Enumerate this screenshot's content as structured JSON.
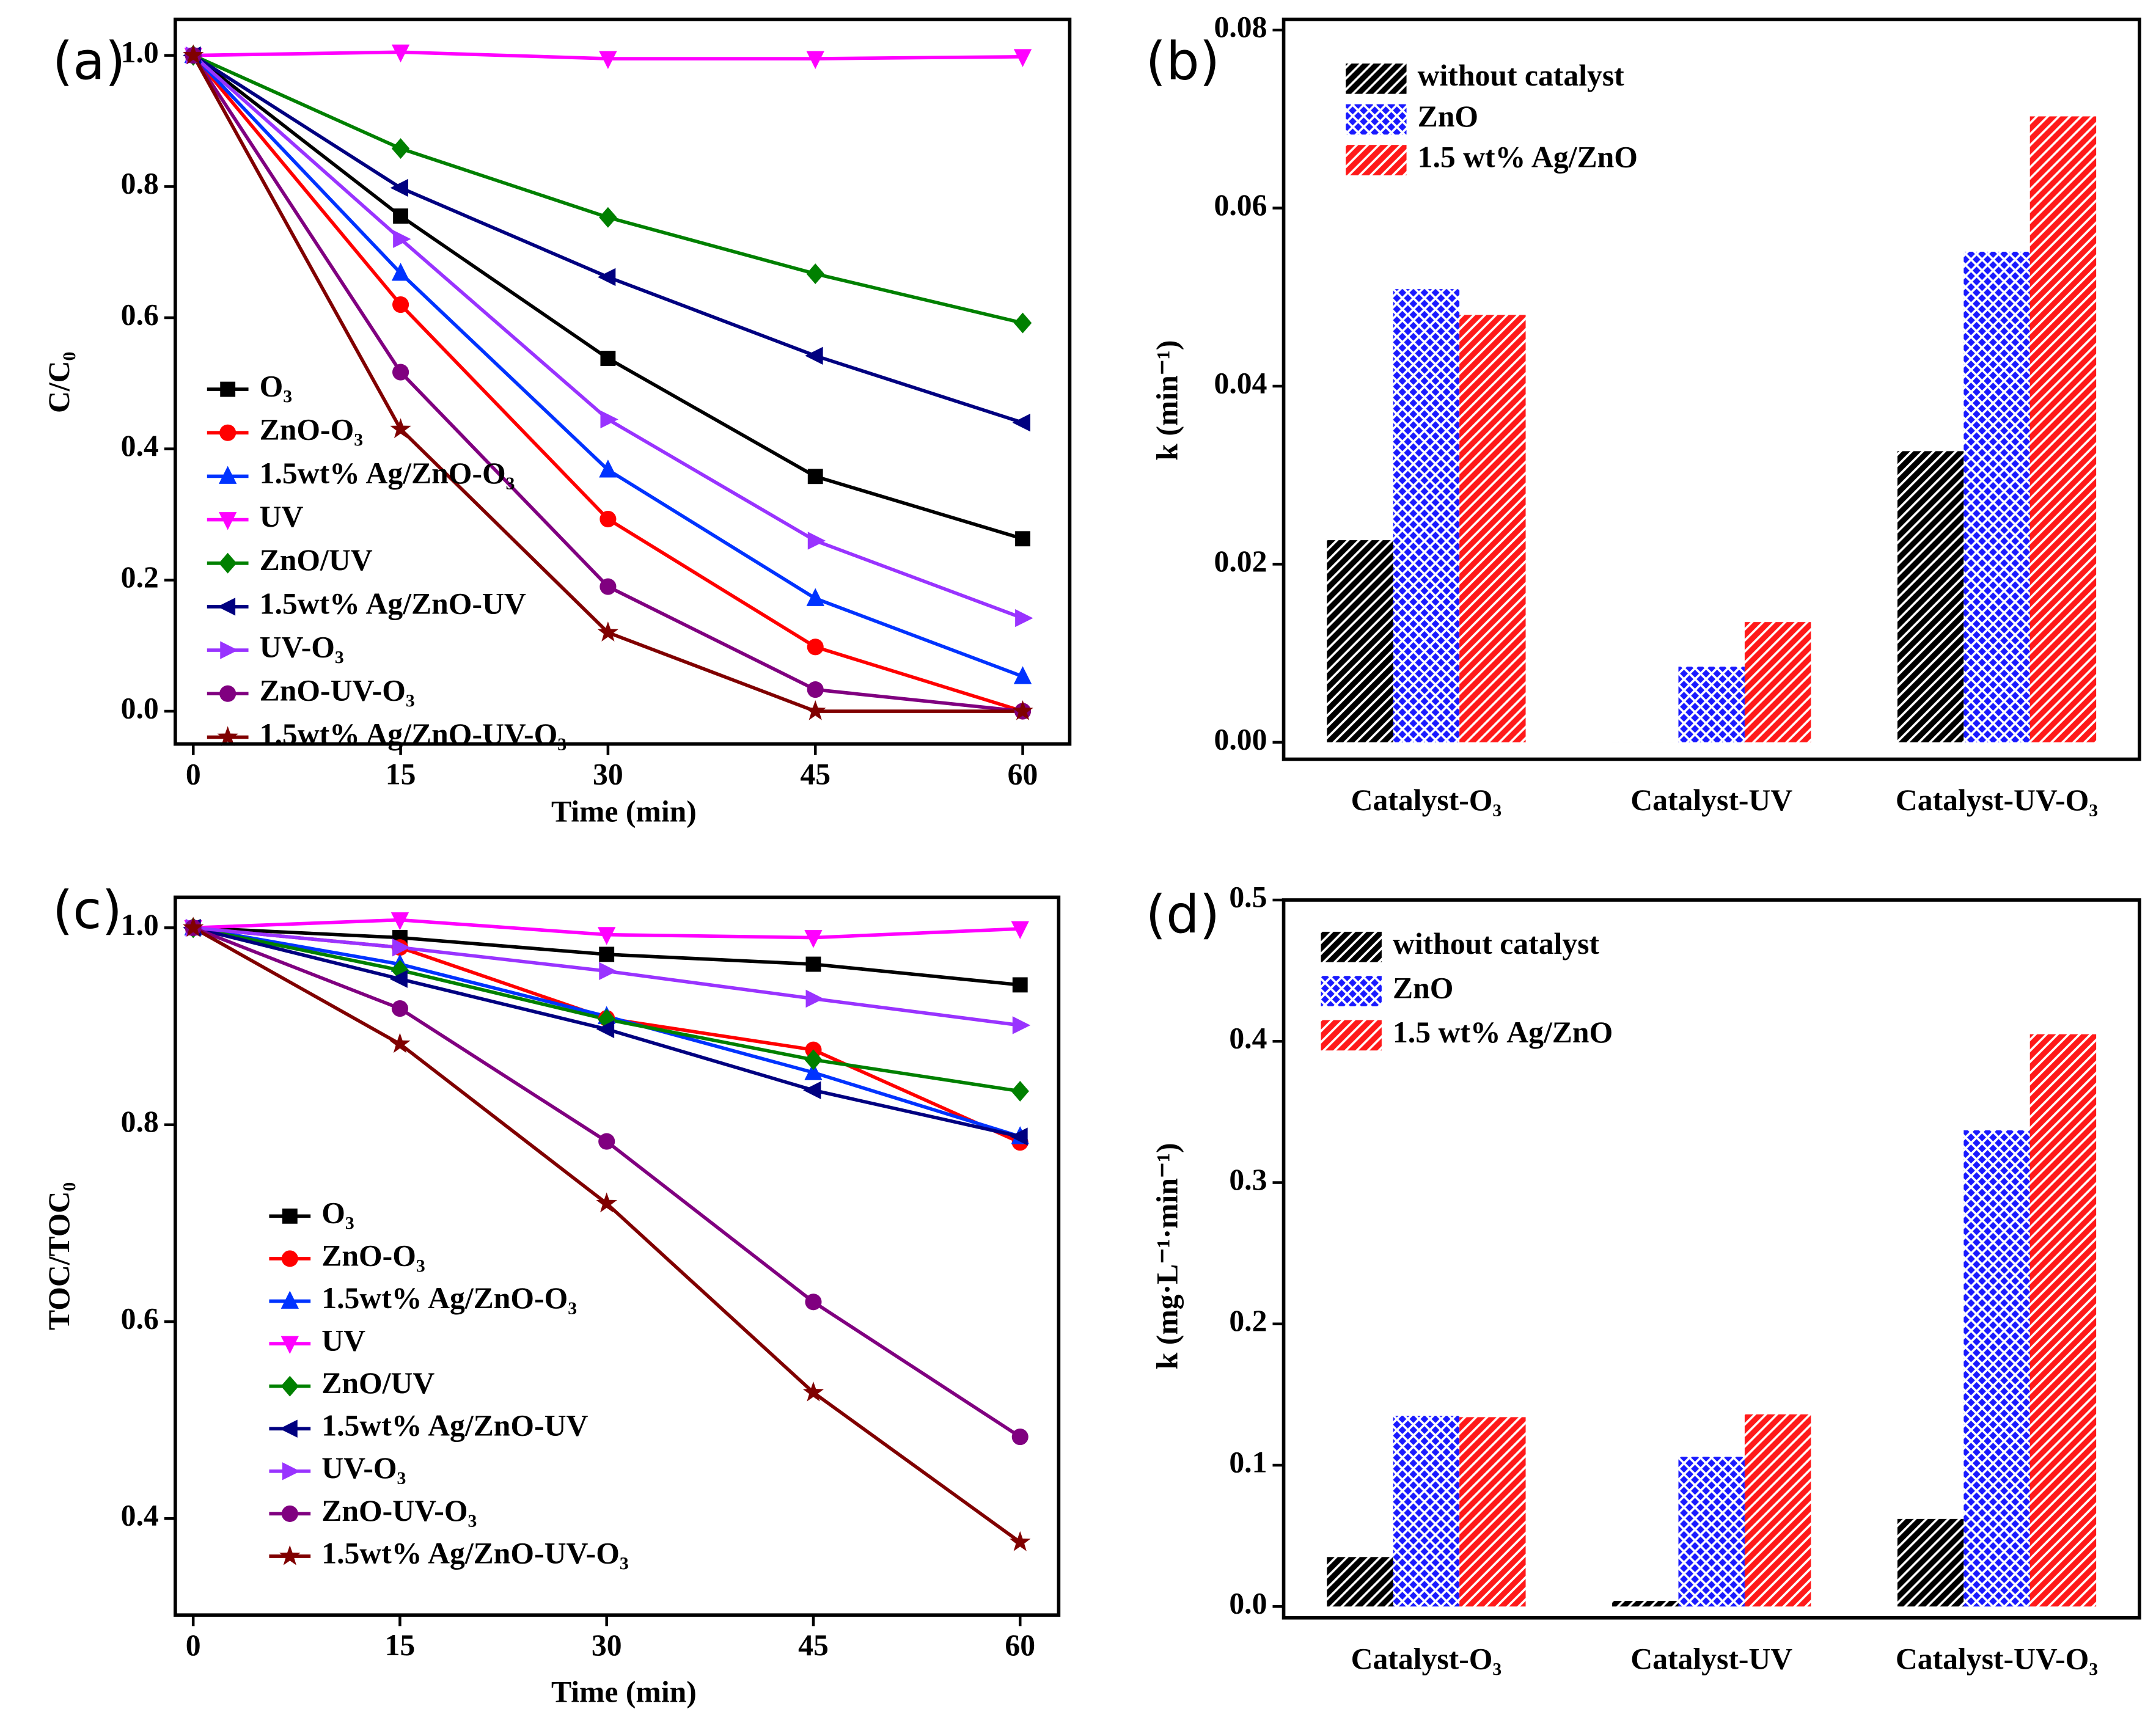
{
  "chart_data": [
    {
      "type": "line",
      "panel_label": "(a)",
      "x_label": "Time (min)",
      "y_label": "C/C₀",
      "x": [
        0,
        15,
        30,
        45,
        60
      ],
      "xlim": [
        -1.3,
        63.4
      ],
      "xticks": [
        0,
        15,
        30,
        45,
        60
      ],
      "ylim": [
        -0.05,
        1.055
      ],
      "yticks": [
        {
          "value": 0,
          "label": "0.0"
        },
        0.2,
        0.4,
        0.6,
        0.8,
        {
          "value": 1,
          "label": "1.0"
        }
      ],
      "series": [
        {
          "name": "O₃",
          "color": "#000000",
          "marker": "square",
          "values": [
            1,
            0.755,
            0.538,
            0.358,
            0.263
          ]
        },
        {
          "name": "ZnO-O₃",
          "color": "#ff0000",
          "marker": "circle",
          "values": [
            1,
            0.62,
            0.293,
            0.098,
            0.0
          ]
        },
        {
          "name": "1.5wt% Ag/ZnO-O₃",
          "color": "#0033ff",
          "marker": "triangle-up",
          "values": [
            1,
            0.668,
            0.368,
            0.172,
            0.053
          ]
        },
        {
          "name": "UV",
          "color": "#ff00ff",
          "marker": "triangle-down",
          "values": [
            1,
            1.005,
            0.995,
            0.995,
            0.998
          ]
        },
        {
          "name": "ZnO/UV",
          "color": "#008000",
          "marker": "diamond",
          "values": [
            1,
            0.858,
            0.753,
            0.667,
            0.592
          ]
        },
        {
          "name": "1.5wt% Ag/ZnO-UV",
          "color": "#000080",
          "marker": "triangle-left",
          "values": [
            1,
            0.798,
            0.662,
            0.542,
            0.44
          ]
        },
        {
          "name": "UV-O₃",
          "color": "#9933ff",
          "marker": "triangle-right",
          "values": [
            1,
            0.72,
            0.445,
            0.26,
            0.142
          ]
        },
        {
          "name": "ZnO-UV-O₃",
          "color": "#800080",
          "marker": "circle",
          "values": [
            1,
            0.517,
            0.19,
            0.033,
            0.0
          ]
        },
        {
          "name": "1.5wt% Ag/ZnO-UV-O₃",
          "color": "#800000",
          "marker": "star",
          "values": [
            1,
            0.43,
            0.12,
            0.0,
            0.0
          ]
        }
      ]
    },
    {
      "type": "bar",
      "panel_label": "(b)",
      "y_label": "k (min⁻¹)",
      "categories": [
        "Catalyst-O₃",
        "Catalyst-UV",
        "Catalyst-UV-O₃"
      ],
      "ylim": [
        -0.0019,
        0.0812
      ],
      "yticks": [
        {
          "value": 0,
          "label": "0.00"
        },
        {
          "value": 0.02,
          "label": "0.02"
        },
        {
          "value": 0.04,
          "label": "0.04"
        },
        {
          "value": 0.06,
          "label": "0.06"
        },
        {
          "value": 0.08,
          "label": "0.08"
        }
      ],
      "series": [
        {
          "name": "without catalyst",
          "color": "#000000",
          "pattern": "hatch",
          "values": [
            0.0227,
            0.0,
            0.0327
          ]
        },
        {
          "name": "ZnO",
          "color": "#1a1aff",
          "pattern": "crosshatch",
          "values": [
            0.0509,
            0.0085,
            0.0551
          ]
        },
        {
          "name": "1.5 wt% Ag/ZnO",
          "color": "#ff1a1a",
          "pattern": "hatch",
          "values": [
            0.048,
            0.0135,
            0.0703
          ]
        }
      ]
    },
    {
      "type": "line",
      "panel_label": "(c)",
      "x_label": "Time (min)",
      "y_label": "TOC/TOC₀",
      "x": [
        0,
        15,
        30,
        45,
        60
      ],
      "xlim": [
        -1.3,
        62.8
      ],
      "xticks": [
        0,
        15,
        30,
        45,
        60
      ],
      "ylim": [
        0.302,
        1.031
      ],
      "yticks": [
        0.4,
        0.6,
        0.8,
        {
          "value": 1,
          "label": "1.0"
        }
      ],
      "series": [
        {
          "name": "O₃",
          "color": "#000000",
          "marker": "square",
          "values": [
            1,
            0.99,
            0.973,
            0.963,
            0.942
          ]
        },
        {
          "name": "ZnO-O₃",
          "color": "#ff0000",
          "marker": "circle",
          "values": [
            1,
            0.98,
            0.908,
            0.876,
            0.782
          ]
        },
        {
          "name": "1.5wt% Ag/ZnO-O₃",
          "color": "#0033ff",
          "marker": "triangle-up",
          "values": [
            1,
            0.963,
            0.91,
            0.853,
            0.788
          ]
        },
        {
          "name": "UV",
          "color": "#ff00ff",
          "marker": "triangle-down",
          "values": [
            1,
            1.008,
            0.993,
            0.99,
            0.999
          ]
        },
        {
          "name": "ZnO/UV",
          "color": "#008000",
          "marker": "diamond",
          "values": [
            1,
            0.957,
            0.907,
            0.866,
            0.834
          ]
        },
        {
          "name": "1.5wt% Ag/ZnO-UV",
          "color": "#000080",
          "marker": "triangle-left",
          "values": [
            1,
            0.948,
            0.897,
            0.835,
            0.788
          ]
        },
        {
          "name": "UV-O₃",
          "color": "#9933ff",
          "marker": "triangle-right",
          "values": [
            1,
            0.98,
            0.956,
            0.928,
            0.901
          ]
        },
        {
          "name": "ZnO-UV-O₃",
          "color": "#800080",
          "marker": "circle",
          "values": [
            1,
            0.918,
            0.783,
            0.62,
            0.483
          ]
        },
        {
          "name": "1.5wt% Ag/ZnO-UV-O₃",
          "color": "#800000",
          "marker": "star",
          "values": [
            1,
            0.882,
            0.72,
            0.528,
            0.376
          ]
        }
      ]
    },
    {
      "type": "bar",
      "panel_label": "(d)",
      "y_label": "k (mg·L⁻¹·min⁻¹)",
      "categories": [
        "Catalyst-O₃",
        "Catalyst-UV",
        "Catalyst-UV-O₃"
      ],
      "ylim": [
        -0.008,
        0.5
      ],
      "yticks": [
        {
          "value": 0,
          "label": "0.0"
        },
        0.1,
        0.2,
        0.3,
        0.4,
        0.5
      ],
      "series": [
        {
          "name": "without catalyst",
          "color": "#000000",
          "pattern": "hatch",
          "values": [
            0.035,
            0.004,
            0.062
          ]
        },
        {
          "name": "ZnO",
          "color": "#1a1aff",
          "pattern": "crosshatch",
          "values": [
            0.135,
            0.106,
            0.337
          ]
        },
        {
          "name": "1.5 wt% Ag/ZnO",
          "color": "#ff1a1a",
          "pattern": "hatch",
          "values": [
            0.134,
            0.136,
            0.405
          ]
        }
      ]
    }
  ]
}
